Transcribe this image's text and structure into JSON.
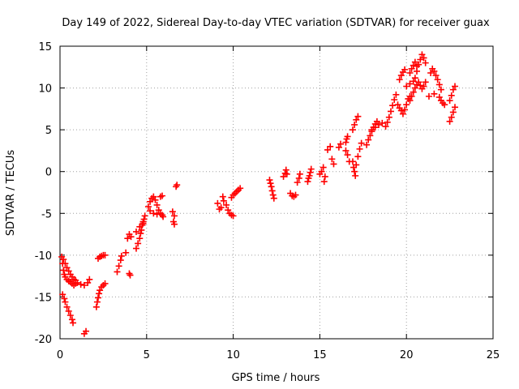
{
  "chart_data": {
    "type": "scatter",
    "title": "Day 149 of 2022, Sidereal Day-to-day VTEC variation (SDTVAR) for receiver guax",
    "xlabel": "GPS time / hours",
    "ylabel": "SDTVAR / TECUs",
    "xlim": [
      0,
      25
    ],
    "ylim": [
      -20,
      15
    ],
    "xticks": [
      "0",
      "5",
      "10",
      "15",
      "20",
      "25"
    ],
    "yticks": [
      "15",
      "10",
      "5",
      "0",
      "-5",
      "-10",
      "-15",
      "-20"
    ],
    "grid": true,
    "marker": "+",
    "color": "#ff0000",
    "series": [
      {
        "name": "SDTVAR",
        "points": [
          [
            0.1,
            -10.2
          ],
          [
            0.15,
            -11.0
          ],
          [
            0.2,
            -11.8
          ],
          [
            0.25,
            -12.3
          ],
          [
            0.3,
            -12.6
          ],
          [
            0.4,
            -12.9
          ],
          [
            0.5,
            -13.1
          ],
          [
            0.6,
            -13.2
          ],
          [
            0.7,
            -13.4
          ],
          [
            0.8,
            -13.6
          ],
          [
            0.9,
            -13.4
          ],
          [
            1.0,
            -13.3
          ],
          [
            1.2,
            -13.5
          ],
          [
            1.4,
            -13.6
          ],
          [
            1.6,
            -13.3
          ],
          [
            1.7,
            -12.9
          ],
          [
            0.15,
            -14.7
          ],
          [
            0.25,
            -15.2
          ],
          [
            0.3,
            -15.6
          ],
          [
            0.4,
            -16.2
          ],
          [
            0.5,
            -16.7
          ],
          [
            0.6,
            -17.2
          ],
          [
            0.7,
            -17.7
          ],
          [
            0.75,
            -18.1
          ],
          [
            1.4,
            -19.4
          ],
          [
            1.5,
            -19.1
          ],
          [
            0.2,
            -10.5
          ],
          [
            0.3,
            -11.0
          ],
          [
            0.4,
            -11.5
          ],
          [
            0.5,
            -11.9
          ],
          [
            0.6,
            -12.3
          ],
          [
            0.7,
            -12.6
          ],
          [
            0.8,
            -12.9
          ],
          [
            0.9,
            -13.0
          ],
          [
            2.1,
            -16.2
          ],
          [
            2.15,
            -15.6
          ],
          [
            2.2,
            -15.1
          ],
          [
            2.25,
            -14.6
          ],
          [
            2.3,
            -14.2
          ],
          [
            2.4,
            -13.8
          ],
          [
            2.5,
            -13.6
          ],
          [
            2.6,
            -13.4
          ],
          [
            2.2,
            -10.4
          ],
          [
            2.3,
            -10.2
          ],
          [
            2.4,
            -10.1
          ],
          [
            2.5,
            -10.0
          ],
          [
            2.6,
            -10.0
          ],
          [
            3.3,
            -12.0
          ],
          [
            3.4,
            -11.3
          ],
          [
            3.5,
            -10.6
          ],
          [
            3.55,
            -10.1
          ],
          [
            3.8,
            -9.7
          ],
          [
            3.9,
            -8.0
          ],
          [
            4.0,
            -7.5
          ],
          [
            4.1,
            -7.8
          ],
          [
            4.0,
            -12.2
          ],
          [
            4.05,
            -12.4
          ],
          [
            4.4,
            -9.2
          ],
          [
            4.5,
            -8.6
          ],
          [
            4.6,
            -8.0
          ],
          [
            4.65,
            -7.4
          ],
          [
            4.7,
            -7.0
          ],
          [
            4.75,
            -6.4
          ],
          [
            4.8,
            -6.0
          ],
          [
            4.85,
            -5.7
          ],
          [
            4.9,
            -5.3
          ],
          [
            4.4,
            -7.2
          ],
          [
            4.6,
            -6.6
          ],
          [
            4.8,
            -6.2
          ],
          [
            5.1,
            -4.2
          ],
          [
            5.2,
            -3.6
          ],
          [
            5.3,
            -3.2
          ],
          [
            5.4,
            -3.0
          ],
          [
            5.5,
            -3.4
          ],
          [
            5.6,
            -4.0
          ],
          [
            5.7,
            -4.6
          ],
          [
            5.8,
            -5.0
          ],
          [
            5.9,
            -5.2
          ],
          [
            5.95,
            -5.4
          ],
          [
            5.2,
            -4.7
          ],
          [
            5.4,
            -5.0
          ],
          [
            5.6,
            -5.1
          ],
          [
            5.8,
            -3.0
          ],
          [
            5.9,
            -2.9
          ],
          [
            6.5,
            -4.8
          ],
          [
            6.6,
            -5.3
          ],
          [
            6.55,
            -6.0
          ],
          [
            6.6,
            -6.3
          ],
          [
            6.7,
            -1.8
          ],
          [
            6.75,
            -1.6
          ],
          [
            9.1,
            -3.8
          ],
          [
            9.2,
            -4.5
          ],
          [
            9.3,
            -4.3
          ],
          [
            9.4,
            -3.0
          ],
          [
            9.45,
            -3.5
          ],
          [
            9.6,
            -4.0
          ],
          [
            9.7,
            -4.6
          ],
          [
            9.8,
            -5.0
          ],
          [
            9.9,
            -5.2
          ],
          [
            10.0,
            -5.3
          ],
          [
            9.9,
            -3.1
          ],
          [
            10.0,
            -2.8
          ],
          [
            10.1,
            -2.6
          ],
          [
            10.2,
            -2.4
          ],
          [
            10.3,
            -2.2
          ],
          [
            10.4,
            -2.0
          ],
          [
            12.1,
            -1.0
          ],
          [
            12.15,
            -1.4
          ],
          [
            12.2,
            -1.8
          ],
          [
            12.25,
            -2.3
          ],
          [
            12.3,
            -2.8
          ],
          [
            12.35,
            -3.2
          ],
          [
            12.9,
            -0.6
          ],
          [
            13.0,
            -0.2
          ],
          [
            13.05,
            0.2
          ],
          [
            13.1,
            -0.3
          ],
          [
            13.3,
            -2.6
          ],
          [
            13.4,
            -2.9
          ],
          [
            13.5,
            -3.0
          ],
          [
            13.6,
            -2.8
          ],
          [
            13.7,
            -1.3
          ],
          [
            13.8,
            -0.8
          ],
          [
            13.85,
            -0.3
          ],
          [
            14.3,
            -1.2
          ],
          [
            14.35,
            -0.8
          ],
          [
            14.4,
            -0.5
          ],
          [
            14.45,
            -0.1
          ],
          [
            14.5,
            0.3
          ],
          [
            15.0,
            -0.3
          ],
          [
            15.1,
            0.0
          ],
          [
            15.2,
            0.5
          ],
          [
            15.25,
            -1.2
          ],
          [
            15.3,
            -0.6
          ],
          [
            15.45,
            2.6
          ],
          [
            15.6,
            3.0
          ],
          [
            15.7,
            1.5
          ],
          [
            15.8,
            0.9
          ],
          [
            16.1,
            2.9
          ],
          [
            16.2,
            3.3
          ],
          [
            16.5,
            3.5
          ],
          [
            16.55,
            3.9
          ],
          [
            16.6,
            4.2
          ],
          [
            16.5,
            2.5
          ],
          [
            16.6,
            2.0
          ],
          [
            16.7,
            1.2
          ],
          [
            16.9,
            5.0
          ],
          [
            17.0,
            5.6
          ],
          [
            17.1,
            6.2
          ],
          [
            17.2,
            6.6
          ],
          [
            16.9,
            1.2
          ],
          [
            16.95,
            0.5
          ],
          [
            17.0,
            0.0
          ],
          [
            17.05,
            -0.5
          ],
          [
            17.1,
            0.8
          ],
          [
            17.2,
            1.8
          ],
          [
            17.3,
            2.7
          ],
          [
            17.4,
            3.4
          ],
          [
            17.7,
            3.2
          ],
          [
            17.8,
            3.8
          ],
          [
            17.9,
            4.3
          ],
          [
            18.0,
            4.8
          ],
          [
            18.1,
            5.3
          ],
          [
            18.2,
            5.7
          ],
          [
            18.3,
            6.0
          ],
          [
            18.0,
            5.0
          ],
          [
            18.2,
            5.3
          ],
          [
            18.4,
            5.6
          ],
          [
            18.6,
            5.8
          ],
          [
            18.8,
            5.4
          ],
          [
            18.9,
            5.9
          ],
          [
            19.0,
            6.5
          ],
          [
            19.1,
            7.2
          ],
          [
            19.2,
            7.9
          ],
          [
            19.3,
            8.6
          ],
          [
            19.4,
            9.2
          ],
          [
            19.5,
            8.0
          ],
          [
            19.6,
            7.6
          ],
          [
            19.7,
            7.3
          ],
          [
            19.8,
            6.9
          ],
          [
            19.9,
            7.4
          ],
          [
            20.0,
            8.0
          ],
          [
            20.1,
            8.7
          ],
          [
            20.2,
            9.0
          ],
          [
            19.6,
            11.0
          ],
          [
            19.7,
            11.5
          ],
          [
            19.8,
            11.9
          ],
          [
            19.9,
            12.2
          ],
          [
            20.0,
            10.2
          ],
          [
            20.2,
            10.5
          ],
          [
            20.4,
            10.8
          ],
          [
            20.5,
            11.2
          ],
          [
            20.6,
            12.0
          ],
          [
            20.7,
            12.8
          ],
          [
            20.8,
            13.4
          ],
          [
            20.9,
            14.0
          ],
          [
            21.0,
            13.6
          ],
          [
            21.1,
            13.0
          ],
          [
            20.2,
            11.8
          ],
          [
            20.3,
            12.3
          ],
          [
            20.4,
            12.7
          ],
          [
            20.5,
            13.1
          ],
          [
            20.6,
            12.6
          ],
          [
            20.2,
            8.5
          ],
          [
            20.3,
            9.0
          ],
          [
            20.4,
            9.5
          ],
          [
            20.5,
            10.0
          ],
          [
            20.6,
            10.4
          ],
          [
            20.7,
            10.7
          ],
          [
            20.8,
            10.3
          ],
          [
            20.9,
            9.9
          ],
          [
            21.0,
            10.2
          ],
          [
            21.1,
            10.7
          ],
          [
            21.4,
            11.8
          ],
          [
            21.5,
            12.3
          ],
          [
            21.6,
            12.0
          ],
          [
            21.7,
            11.5
          ],
          [
            21.8,
            11.0
          ],
          [
            21.9,
            10.4
          ],
          [
            22.0,
            9.8
          ],
          [
            21.3,
            9.0
          ],
          [
            21.6,
            9.3
          ],
          [
            21.9,
            8.9
          ],
          [
            22.0,
            8.5
          ],
          [
            22.1,
            8.2
          ],
          [
            22.2,
            8.0
          ],
          [
            22.5,
            6.0
          ],
          [
            22.6,
            6.5
          ],
          [
            22.7,
            7.1
          ],
          [
            22.8,
            7.7
          ],
          [
            22.5,
            8.5
          ],
          [
            22.6,
            9.1
          ],
          [
            22.7,
            9.8
          ],
          [
            22.8,
            10.2
          ]
        ]
      }
    ]
  }
}
